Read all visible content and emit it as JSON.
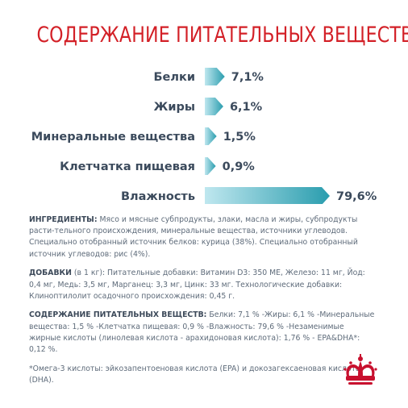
{
  "title": "СОДЕРЖАНИЕ ПИТАТЕЛЬНЫХ ВЕЩЕСТВ",
  "colors": {
    "title": "#d32027",
    "bar_start": "#bfe7ef",
    "bar_end": "#2a9dae",
    "label": "#3b4a5c",
    "text": "#5e6b7a"
  },
  "chart_data": {
    "type": "bar",
    "orientation": "horizontal",
    "categories": [
      "Белки",
      "Жиры",
      "Минеральные вещества",
      "Клетчатка пищевая",
      "Влажность"
    ],
    "values": [
      7.1,
      6.1,
      1.5,
      0.9,
      79.6
    ],
    "value_labels": [
      "7,1%",
      "6,1%",
      "1,5%",
      "0,9%",
      "79,6%"
    ],
    "unit": "%",
    "grid": false,
    "legend": "none"
  },
  "sections": {
    "ingredients": {
      "heading": "ИНГРЕДИЕНТЫ:",
      "text": "Мясо и мясные субпродукты, злаки, масла и жиры, субпродукты расти-тельного происхождения, минеральные вещества, источники углеводов. Специально отобранный источник белков: курица (38%). Специально отобранный источник углеводов: рис (4%)."
    },
    "additives": {
      "heading": "ДОБАВКИ",
      "text": "(в 1 кг): Питательные добавки: Витамин D3: 350 МЕ, Железо: 11 мг, Йод: 0,4 мг, Медь: 3,5 мг, Марганец: 3,3 мг, Цинк: 33 мг. Технологические добавки: Клиноптилолит осадочного происхождения: 0,45 г."
    },
    "nutrients": {
      "heading": "СОДЕРЖАНИЕ ПИТАТЕЛЬНЫХ ВЕЩЕСТВ:",
      "text": "Белки: 7,1 % -Жиры: 6,1 % -Минеральные вещества: 1,5 % -Клетчатка пищевая: 0,9 % -Влажность: 79,6 % -Незаменимые жирные кислоты (линолевая кислота - арахидоновая кислота): 1,76 % - EPA&DHA*: 0,12 %."
    },
    "footnote": {
      "text": "*Омега-3 кислоты: эйкозапентоеновая кислота (EPA) и докозагексаеновая кислота (DHA)."
    }
  },
  "logo": {
    "icon": "crown-icon"
  }
}
